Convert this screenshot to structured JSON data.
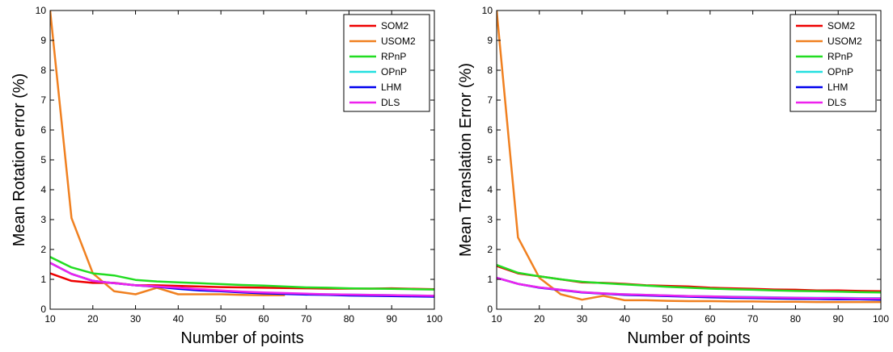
{
  "chart_data": [
    {
      "type": "line",
      "xlabel": "Number of points",
      "ylabel": "Mean Rotation error (%)",
      "xlim": [
        10,
        100
      ],
      "ylim": [
        0,
        10
      ],
      "xticks": [
        10,
        20,
        30,
        40,
        50,
        60,
        70,
        80,
        90,
        100
      ],
      "yticks": [
        0,
        1,
        2,
        3,
        4,
        5,
        6,
        7,
        8,
        9,
        10
      ],
      "legend_position": "top-right",
      "grid": false,
      "x": [
        10,
        15,
        20,
        25,
        30,
        35,
        40,
        45,
        50,
        55,
        60,
        65,
        70,
        75,
        80,
        85,
        90,
        95,
        100
      ],
      "series": [
        {
          "name": "SOM2",
          "color": "#ee0000",
          "values": [
            1.2,
            0.95,
            0.88,
            0.88,
            0.8,
            0.8,
            0.78,
            0.76,
            0.74,
            0.73,
            0.72,
            0.71,
            0.7,
            0.69,
            0.69,
            0.69,
            0.7,
            0.68,
            0.67
          ]
        },
        {
          "name": "USOM2",
          "color": "#f08020",
          "values": [
            10.0,
            3.05,
            1.2,
            0.6,
            0.5,
            0.72,
            0.5,
            0.5,
            0.5,
            0.48,
            0.47,
            0.47,
            null,
            null,
            null,
            null,
            null,
            null,
            null
          ]
        },
        {
          "name": "RPnP",
          "color": "#22dd22",
          "values": [
            1.75,
            1.4,
            1.2,
            1.13,
            0.98,
            0.93,
            0.9,
            0.87,
            0.84,
            0.81,
            0.79,
            0.76,
            0.73,
            0.72,
            0.7,
            0.69,
            0.68,
            0.67,
            0.66
          ]
        },
        {
          "name": "OPnP",
          "color": "#22e0e0",
          "values": [
            1.55,
            1.18,
            0.95,
            0.87,
            0.8,
            0.76,
            0.7,
            0.65,
            0.62,
            0.58,
            0.55,
            0.53,
            0.51,
            0.5,
            0.49,
            0.48,
            0.47,
            0.46,
            0.45
          ]
        },
        {
          "name": "LHM",
          "color": "#0000ee",
          "values": [
            1.55,
            1.18,
            0.95,
            0.87,
            0.8,
            0.75,
            0.68,
            0.63,
            0.6,
            0.56,
            0.53,
            0.51,
            0.49,
            0.48,
            0.46,
            0.45,
            0.44,
            0.43,
            0.42
          ]
        },
        {
          "name": "DLS",
          "color": "#ee22ee",
          "values": [
            1.55,
            1.18,
            0.95,
            0.87,
            0.8,
            0.76,
            0.72,
            0.67,
            0.63,
            0.59,
            0.56,
            0.54,
            0.52,
            0.5,
            0.49,
            0.48,
            0.47,
            0.46,
            0.45
          ]
        }
      ]
    },
    {
      "type": "line",
      "xlabel": "Number of points",
      "ylabel": "Mean Translation Error (%)",
      "xlim": [
        10,
        100
      ],
      "ylim": [
        0,
        10
      ],
      "xticks": [
        10,
        20,
        30,
        40,
        50,
        60,
        70,
        80,
        90,
        100
      ],
      "yticks": [
        0,
        1,
        2,
        3,
        4,
        5,
        6,
        7,
        8,
        9,
        10
      ],
      "legend_position": "top-right",
      "grid": false,
      "x": [
        10,
        15,
        20,
        25,
        30,
        35,
        40,
        45,
        50,
        55,
        60,
        65,
        70,
        75,
        80,
        85,
        90,
        95,
        100
      ],
      "series": [
        {
          "name": "SOM2",
          "color": "#ee0000",
          "values": [
            1.45,
            1.2,
            1.1,
            1.0,
            0.9,
            0.88,
            0.85,
            0.8,
            0.78,
            0.76,
            0.72,
            0.7,
            0.68,
            0.66,
            0.65,
            0.63,
            0.63,
            0.61,
            0.6
          ]
        },
        {
          "name": "USOM2",
          "color": "#f08020",
          "values": [
            10.0,
            2.4,
            1.05,
            0.5,
            0.32,
            0.45,
            0.3,
            0.3,
            0.28,
            0.27,
            0.27,
            0.26,
            0.26,
            0.25,
            0.25,
            0.24,
            0.24,
            0.24,
            0.24
          ]
        },
        {
          "name": "RPnP",
          "color": "#22dd22",
          "values": [
            1.48,
            1.22,
            1.1,
            1.0,
            0.92,
            0.87,
            0.83,
            0.79,
            0.75,
            0.72,
            0.69,
            0.67,
            0.65,
            0.63,
            0.61,
            0.6,
            0.59,
            0.57,
            0.56
          ]
        },
        {
          "name": "OPnP",
          "color": "#22e0e0",
          "values": [
            1.05,
            0.85,
            0.73,
            0.65,
            0.57,
            0.53,
            0.5,
            0.48,
            0.46,
            0.44,
            0.43,
            0.42,
            0.41,
            0.4,
            0.39,
            0.38,
            0.38,
            0.37,
            0.37
          ]
        },
        {
          "name": "LHM",
          "color": "#0000ee",
          "values": [
            1.05,
            0.85,
            0.72,
            0.64,
            0.56,
            0.52,
            0.48,
            0.46,
            0.44,
            0.42,
            0.4,
            0.38,
            0.37,
            0.36,
            0.35,
            0.34,
            0.33,
            0.33,
            0.32
          ]
        },
        {
          "name": "DLS",
          "color": "#ee22ee",
          "values": [
            1.05,
            0.85,
            0.73,
            0.65,
            0.57,
            0.53,
            0.5,
            0.48,
            0.46,
            0.44,
            0.43,
            0.41,
            0.4,
            0.39,
            0.38,
            0.37,
            0.37,
            0.36,
            0.36
          ]
        }
      ]
    }
  ]
}
